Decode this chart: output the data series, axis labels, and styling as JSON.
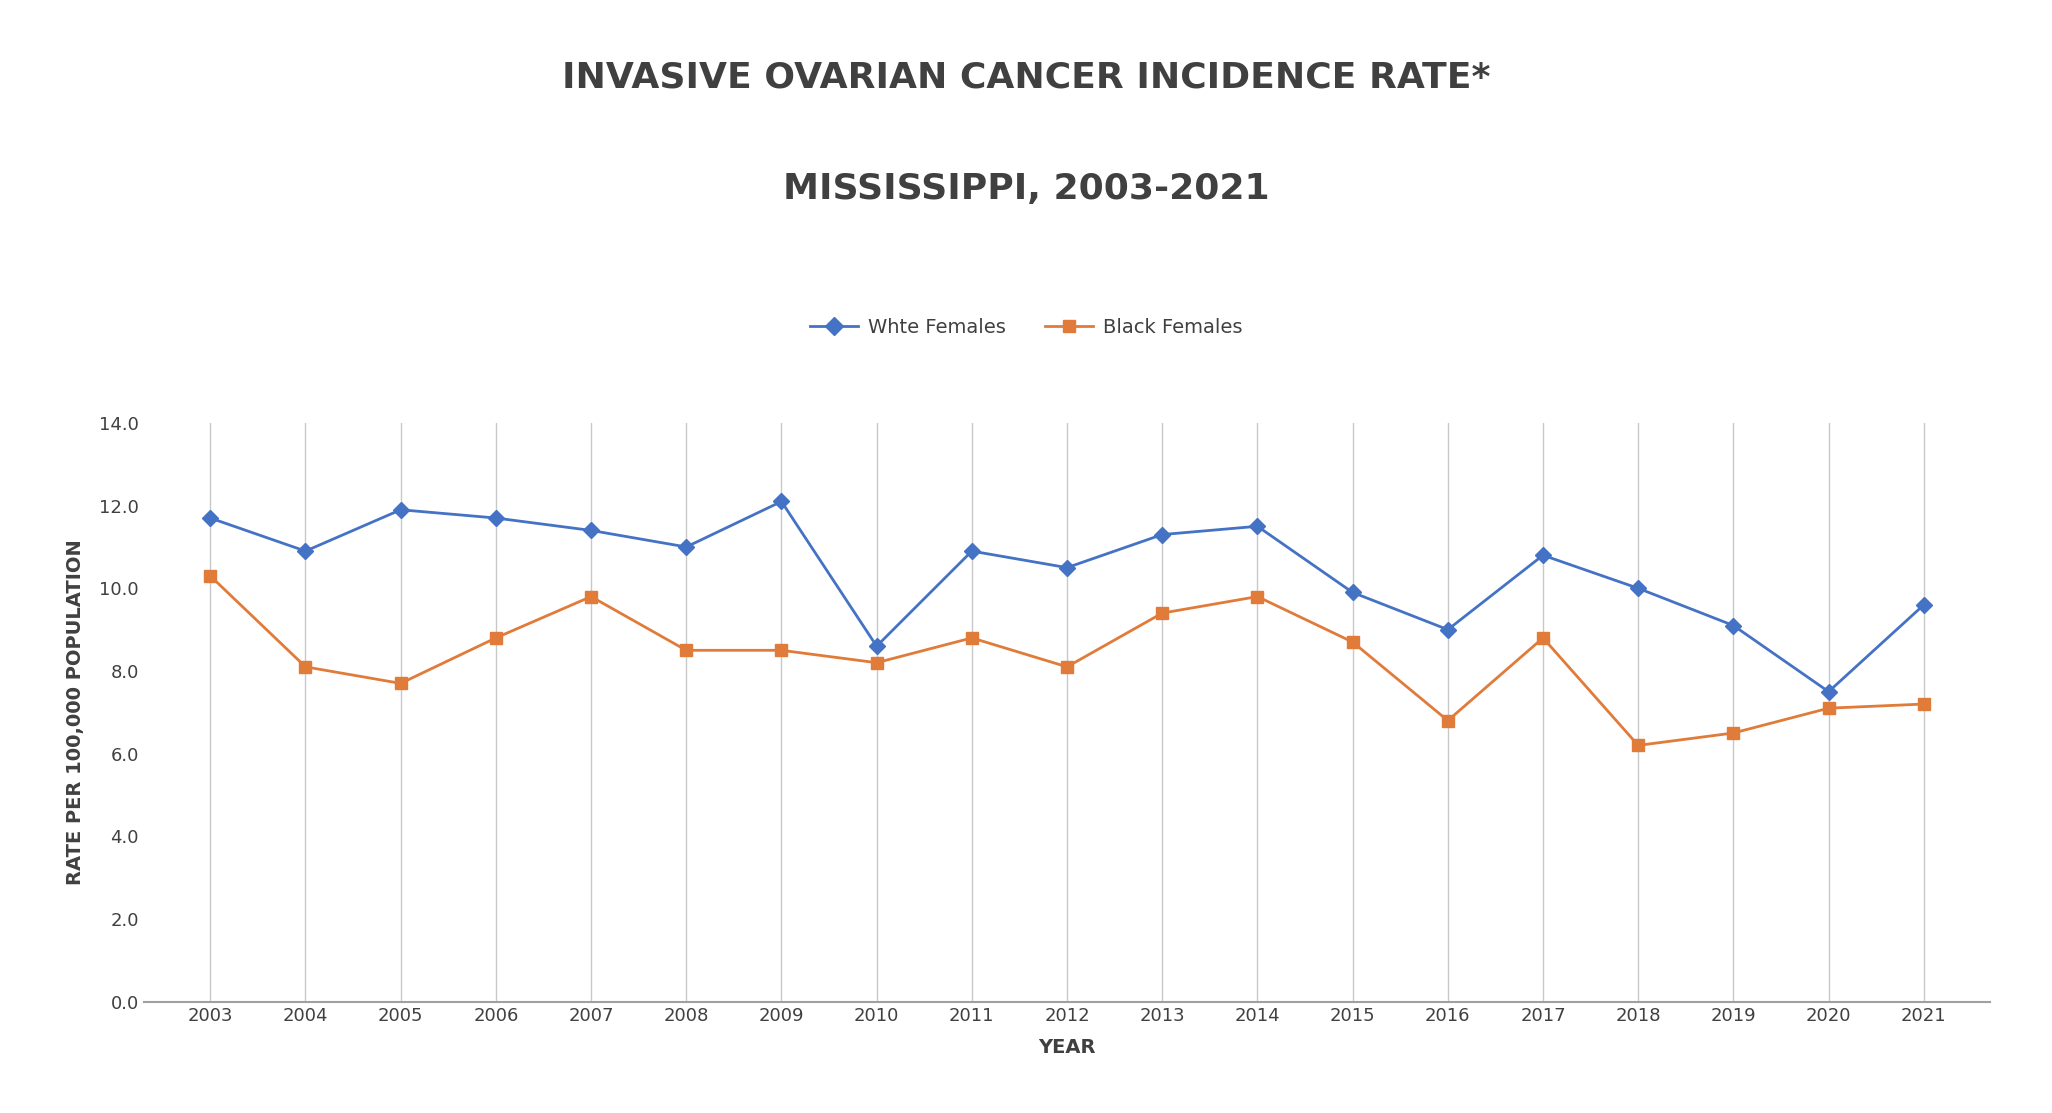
{
  "title_line1": "INVASIVE OVARIAN CANCER INCIDENCE RATE*",
  "title_line2": "MISSISSIPPI, 2003-2021",
  "xlabel": "YEAR",
  "ylabel": "RATE PER 100,000 POPULATION",
  "years": [
    2003,
    2004,
    2005,
    2006,
    2007,
    2008,
    2009,
    2010,
    2011,
    2012,
    2013,
    2014,
    2015,
    2016,
    2017,
    2018,
    2019,
    2020,
    2021
  ],
  "white_females": [
    11.7,
    10.9,
    11.9,
    11.7,
    11.4,
    11.0,
    12.1,
    8.6,
    10.9,
    10.5,
    11.3,
    11.5,
    9.9,
    9.0,
    10.8,
    10.0,
    9.1,
    7.5,
    9.6
  ],
  "black_females": [
    10.3,
    8.1,
    7.7,
    8.8,
    9.8,
    8.5,
    8.5,
    8.2,
    8.8,
    8.1,
    9.4,
    9.8,
    8.7,
    6.8,
    8.8,
    6.2,
    6.5,
    7.1,
    7.2
  ],
  "white_color": "#4472C4",
  "black_color": "#E07B39",
  "white_label": "Whte Females",
  "black_label": "Black Females",
  "ylim_min": 0.0,
  "ylim_max": 14.0,
  "ytick_step": 2.0,
  "background_color": "#FFFFFF",
  "grid_color": "#C8C8C8",
  "title_fontsize": 26,
  "axis_label_fontsize": 14,
  "tick_fontsize": 13,
  "legend_fontsize": 14,
  "title_color": "#404040",
  "axis_label_color": "#404040",
  "tick_color": "#404040"
}
